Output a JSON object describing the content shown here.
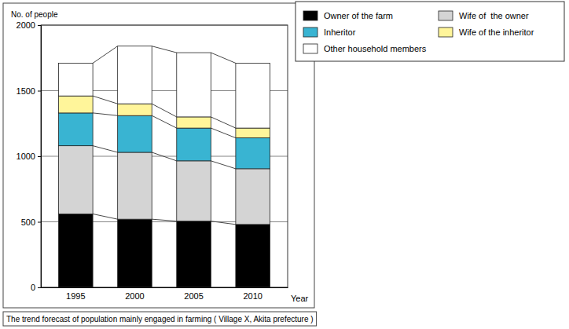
{
  "chart_data": {
    "type": "bar",
    "stacked": true,
    "title": "The trend forecast of population mainly engaged in farming ( Village X, Akita prefecture )",
    "y_label": "No. of people",
    "x_label": "Year",
    "categories": [
      "1995",
      "2000",
      "2005",
      "2010"
    ],
    "series": [
      {
        "name": "Owner of the farm",
        "color": "#000000",
        "values": [
          560,
          520,
          505,
          480
        ]
      },
      {
        "name": "Wife of  the owner",
        "color": "#d4d4d4",
        "values": [
          520,
          510,
          460,
          425
        ]
      },
      {
        "name": "Inheritor",
        "color": "#39b4d2",
        "values": [
          250,
          280,
          250,
          235
        ]
      },
      {
        "name": "Wife of the inheritor",
        "color": "#fff59a",
        "values": [
          130,
          90,
          85,
          75
        ]
      },
      {
        "name": "Other household members",
        "color": "#ffffff",
        "values": [
          250,
          440,
          490,
          495
        ]
      }
    ],
    "ylim": [
      0,
      2000
    ],
    "yticks": [
      0,
      500,
      1000,
      1500,
      2000
    ],
    "grid": true,
    "legend": "upper right"
  }
}
